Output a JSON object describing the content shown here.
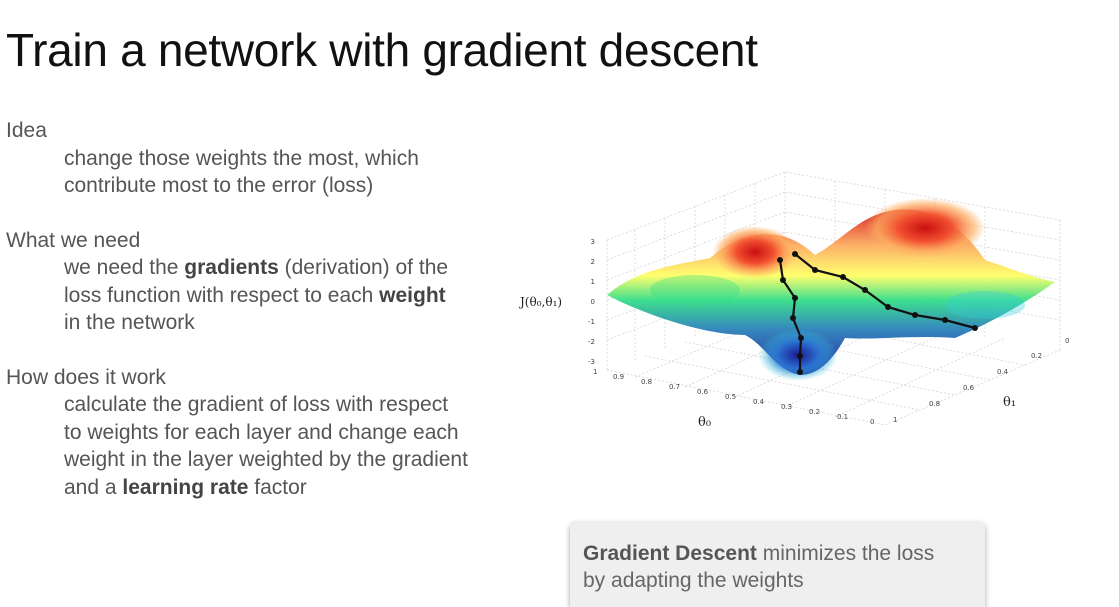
{
  "slide": {
    "title": "Train a network with gradient descent"
  },
  "sections": [
    {
      "heading": "Idea",
      "lines": [
        "change those weights the most, which",
        "contribute most to the error (loss)"
      ]
    },
    {
      "heading": "What we need",
      "line1_pre": "we need the ",
      "line1_bold": "gradients",
      "line1_post": " (derivation) of the",
      "line2_pre": "loss function with respect to each ",
      "line2_bold": "weight",
      "line3": "in the network"
    },
    {
      "heading": "How does it work",
      "line1": "calculate the gradient of loss with respect",
      "line2": "to weights for each layer and change each",
      "line3": "weight in the layer weighted by the gradient",
      "line4_pre": "and a ",
      "line4_bold": "learning rate",
      "line4_post": " factor"
    }
  ],
  "figure": {
    "z_label": "J(θ₀,θ₁)",
    "x_label": "θ₀",
    "y_label": "θ₁",
    "z_ticks": [
      "3",
      "2",
      "1",
      "0",
      "-1",
      "-2",
      "-3"
    ],
    "theta0_ticks": [
      "1",
      "0.9",
      "0.8",
      "0.7",
      "0.6",
      "0.5",
      "0.4",
      "0.3",
      "0.2",
      "0.1",
      "0"
    ],
    "theta1_ticks": [
      "1",
      "0.8",
      "0.6",
      "0.4",
      "0.2",
      "0"
    ]
  },
  "callout": {
    "bold": "Gradient Descent",
    "rest": " minimizes the loss",
    "line2": "by adapting the weights"
  },
  "colors": {
    "text": "#555555",
    "title": "#111111",
    "callout_bg": "#efefef"
  }
}
